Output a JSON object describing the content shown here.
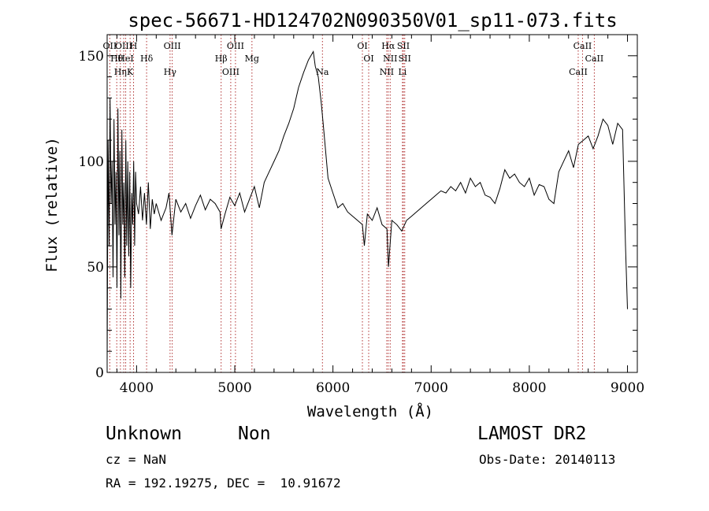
{
  "chart_data": {
    "type": "line",
    "title": "spec-56671-HD124702N090350V01_sp11-073.fits",
    "xlabel": "Wavelength (Å)",
    "ylabel": "Flux (relative)",
    "xlim": [
      3700,
      9100
    ],
    "ylim": [
      0,
      160
    ],
    "xticks": [
      4000,
      5000,
      6000,
      7000,
      8000,
      9000
    ],
    "yticks": [
      0,
      50,
      100,
      150
    ],
    "xtick_labels": [
      "4000",
      "5000",
      "6000",
      "7000",
      "8000",
      "9000"
    ],
    "ytick_labels": [
      "0",
      "50",
      "100",
      "150"
    ],
    "grid": false,
    "series": [
      {
        "x": [
          3700,
          3710,
          3720,
          3730,
          3740,
          3750,
          3760,
          3770,
          3780,
          3790,
          3800,
          3810,
          3820,
          3830,
          3840,
          3850,
          3860,
          3870,
          3880,
          3890,
          3900,
          3910,
          3920,
          3930,
          3940,
          3950,
          3960,
          3970,
          3980,
          3990,
          4000,
          4020,
          4040,
          4060,
          4080,
          4100,
          4120,
          4140,
          4160,
          4180,
          4200,
          4250,
          4300,
          4330,
          4360,
          4400,
          4450,
          4500,
          4550,
          4600,
          4650,
          4700,
          4750,
          4800,
          4850,
          4860,
          4900,
          4950,
          5000,
          5050,
          5100,
          5150,
          5200,
          5250,
          5300,
          5350,
          5400,
          5450,
          5500,
          5550,
          5600,
          5650,
          5700,
          5750,
          5800,
          5820,
          5850,
          5880,
          5900,
          5950,
          6000,
          6050,
          6100,
          6150,
          6200,
          6250,
          6300,
          6320,
          6350,
          6400,
          6450,
          6500,
          6550,
          6565,
          6600,
          6650,
          6700,
          6750,
          6800,
          6850,
          6900,
          6950,
          7000,
          7050,
          7100,
          7150,
          7200,
          7250,
          7300,
          7350,
          7400,
          7450,
          7500,
          7550,
          7600,
          7650,
          7700,
          7750,
          7800,
          7850,
          7900,
          7950,
          8000,
          8050,
          8100,
          8150,
          8200,
          8250,
          8300,
          8350,
          8400,
          8450,
          8500,
          8550,
          8600,
          8650,
          8700,
          8750,
          8800,
          8850,
          8900,
          8950,
          8980,
          9000
        ],
        "y": [
          5,
          110,
          60,
          130,
          80,
          100,
          45,
          120,
          70,
          95,
          40,
          125,
          65,
          105,
          35,
          115,
          70,
          90,
          45,
          110,
          60,
          100,
          55,
          95,
          40,
          85,
          70,
          100,
          60,
          95,
          80,
          75,
          88,
          72,
          85,
          70,
          90,
          68,
          82,
          75,
          80,
          72,
          78,
          85,
          65,
          82,
          76,
          80,
          73,
          79,
          84,
          77,
          82,
          80,
          76,
          68,
          75,
          83,
          79,
          85,
          76,
          82,
          88,
          78,
          90,
          95,
          100,
          105,
          112,
          118,
          125,
          135,
          142,
          148,
          152,
          145,
          140,
          128,
          118,
          92,
          85,
          78,
          80,
          76,
          74,
          72,
          70,
          60,
          75,
          72,
          78,
          70,
          68,
          50,
          72,
          70,
          67,
          72,
          74,
          76,
          78,
          80,
          82,
          84,
          86,
          85,
          88,
          86,
          90,
          85,
          92,
          88,
          90,
          84,
          83,
          80,
          87,
          96,
          92,
          94,
          90,
          88,
          92,
          84,
          89,
          88,
          82,
          80,
          95,
          100,
          105,
          97,
          108,
          110,
          112,
          106,
          112,
          120,
          117,
          108,
          118,
          115,
          60,
          30
        ]
      }
    ],
    "line_labels": [
      {
        "x": 3727,
        "labels": [
          "OII"
        ]
      },
      {
        "x": 3798,
        "labels": [
          "Hθ"
        ]
      },
      {
        "x": 3835,
        "labels": [
          "Hη"
        ]
      },
      {
        "x": 3869,
        "labels": [
          "OIII"
        ]
      },
      {
        "x": 3889,
        "labels": [
          "HeI"
        ]
      },
      {
        "x": 3934,
        "labels": [
          "K"
        ]
      },
      {
        "x": 3969,
        "labels": [
          "H"
        ]
      },
      {
        "x": 4102,
        "labels": [
          "Hδ"
        ]
      },
      {
        "x": 4341,
        "labels": [
          "Hγ"
        ]
      },
      {
        "x": 4363,
        "labels": [
          "OIII"
        ]
      },
      {
        "x": 4861,
        "labels": [
          "Hβ"
        ]
      },
      {
        "x": 4959,
        "labels": [
          "OIII"
        ]
      },
      {
        "x": 5007,
        "labels": [
          "OIII"
        ]
      },
      {
        "x": 5175,
        "labels": [
          "Mg"
        ]
      },
      {
        "x": 5893,
        "labels": [
          "Na"
        ]
      },
      {
        "x": 6300,
        "labels": [
          "OI"
        ]
      },
      {
        "x": 6364,
        "labels": [
          "OI"
        ]
      },
      {
        "x": 6548,
        "labels": [
          "NII"
        ]
      },
      {
        "x": 6563,
        "labels": [
          "Hα"
        ]
      },
      {
        "x": 6583,
        "labels": [
          "NII"
        ]
      },
      {
        "x": 6708,
        "labels": [
          "Li"
        ]
      },
      {
        "x": 6717,
        "labels": [
          "SII"
        ]
      },
      {
        "x": 6731,
        "labels": [
          "SII"
        ]
      },
      {
        "x": 8498,
        "labels": [
          "CaII"
        ]
      },
      {
        "x": 8542,
        "labels": [
          "CaII"
        ]
      },
      {
        "x": 8662,
        "labels": [
          "CaII"
        ]
      }
    ]
  },
  "footer": {
    "class_label": "Unknown",
    "subclass_label": "Non",
    "survey": "LAMOST DR2",
    "cz": "cz = NaN",
    "obs_date": "Obs-Date: 20140113",
    "coords": "RA = 192.19275, DEC =  10.91672"
  }
}
